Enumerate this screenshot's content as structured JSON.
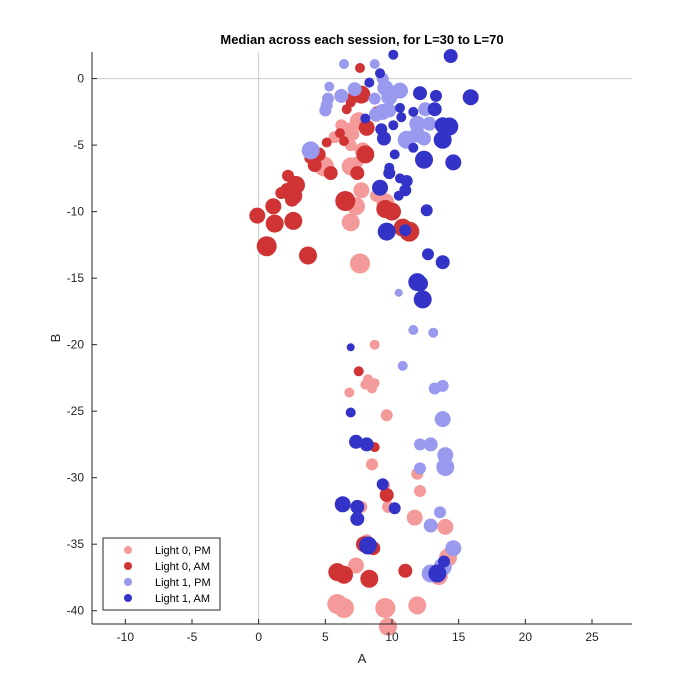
{
  "chart_data": {
    "type": "scatter",
    "title": "Median across each session, for L=30 to L=70",
    "xlabel": "A",
    "ylabel": "B",
    "xlim": [
      -12.5,
      28
    ],
    "ylim": [
      -41,
      2
    ],
    "xticks": [
      -10,
      -5,
      0,
      5,
      10,
      15,
      20,
      25
    ],
    "yticks": [
      0,
      -5,
      -10,
      -15,
      -20,
      -25,
      -30,
      -35,
      -40
    ],
    "reference_lines": {
      "x": 0,
      "y": 0
    },
    "grid": false,
    "legend_position": "bottom-left",
    "series": [
      {
        "name": "Light 0, PM",
        "color": "#F59A9A",
        "points": [
          [
            8.8,
            -2.8,
            6
          ],
          [
            7.5,
            -3.2,
            9
          ],
          [
            6.2,
            -3.5,
            6
          ],
          [
            6.6,
            -3.9,
            8
          ],
          [
            7.1,
            -4.2,
            6
          ],
          [
            5.7,
            -4.4,
            6
          ],
          [
            6.9,
            -5.0,
            6
          ],
          [
            7.8,
            -5.4,
            8
          ],
          [
            7.4,
            -6.3,
            6
          ],
          [
            6.9,
            -6.6,
            9
          ],
          [
            4.9,
            -6.6,
            10
          ],
          [
            7.7,
            -8.4,
            8
          ],
          [
            8.8,
            -8.8,
            6
          ],
          [
            9.5,
            -9.3,
            9
          ],
          [
            7.3,
            -9.6,
            9
          ],
          [
            6.9,
            -10.8,
            9
          ],
          [
            7.6,
            -13.9,
            10
          ],
          [
            8.7,
            -20.0,
            5
          ],
          [
            8.2,
            -22.6,
            5
          ],
          [
            8.7,
            -22.9,
            5
          ],
          [
            8.0,
            -23.0,
            5
          ],
          [
            6.8,
            -23.6,
            5
          ],
          [
            8.5,
            -23.3,
            5
          ],
          [
            9.6,
            -25.3,
            6
          ],
          [
            8.5,
            -29.0,
            6
          ],
          [
            11.9,
            -29.7,
            6
          ],
          [
            9.4,
            -30.6,
            6
          ],
          [
            12.1,
            -31.0,
            6
          ],
          [
            7.7,
            -32.2,
            6
          ],
          [
            9.7,
            -32.2,
            6
          ],
          [
            11.7,
            -33.0,
            8
          ],
          [
            14.0,
            -33.7,
            8
          ],
          [
            8.1,
            -34.7,
            6
          ],
          [
            14.2,
            -36.0,
            9
          ],
          [
            7.3,
            -36.6,
            8
          ],
          [
            13.5,
            -37.4,
            9
          ],
          [
            5.9,
            -39.5,
            10
          ],
          [
            6.4,
            -39.8,
            10
          ],
          [
            9.5,
            -39.8,
            10
          ],
          [
            11.9,
            -39.6,
            9
          ],
          [
            9.7,
            -41.2,
            9
          ]
        ]
      },
      {
        "name": "Light 0, AM",
        "color": "#D03333",
        "points": [
          [
            7.6,
            0.8,
            5
          ],
          [
            7.1,
            -1.4,
            6
          ],
          [
            6.9,
            -1.8,
            5
          ],
          [
            7.7,
            -1.2,
            9
          ],
          [
            6.6,
            -2.3,
            5
          ],
          [
            8.9,
            -2.6,
            7
          ],
          [
            8.1,
            -3.7,
            8
          ],
          [
            6.1,
            -4.1,
            5
          ],
          [
            6.4,
            -4.7,
            5
          ],
          [
            5.1,
            -4.8,
            5
          ],
          [
            4.5,
            -5.7,
            7
          ],
          [
            8.0,
            -5.7,
            9
          ],
          [
            4.2,
            -6.5,
            7
          ],
          [
            3.8,
            -6.0,
            5
          ],
          [
            7.4,
            -7.1,
            7
          ],
          [
            5.4,
            -7.1,
            7
          ],
          [
            2.2,
            -7.3,
            6
          ],
          [
            2.8,
            -8.0,
            9
          ],
          [
            2.1,
            -8.3,
            6
          ],
          [
            1.7,
            -8.6,
            6
          ],
          [
            2.6,
            -8.8,
            9
          ],
          [
            2.5,
            -9.1,
            7
          ],
          [
            1.1,
            -9.6,
            8
          ],
          [
            -0.1,
            -10.3,
            8
          ],
          [
            1.2,
            -10.9,
            9
          ],
          [
            2.6,
            -10.7,
            9
          ],
          [
            6.5,
            -9.2,
            10
          ],
          [
            9.5,
            -9.8,
            9
          ],
          [
            10.0,
            -10.0,
            9
          ],
          [
            10.8,
            -11.2,
            9
          ],
          [
            11.3,
            -11.5,
            10
          ],
          [
            0.6,
            -12.6,
            10
          ],
          [
            3.7,
            -13.3,
            9
          ],
          [
            7.5,
            -22.0,
            5
          ],
          [
            8.7,
            -27.7,
            5
          ],
          [
            9.6,
            -31.3,
            7
          ],
          [
            7.9,
            -35.0,
            8
          ],
          [
            8.6,
            -35.3,
            7
          ],
          [
            5.9,
            -37.1,
            9
          ],
          [
            6.4,
            -37.3,
            9
          ],
          [
            11.0,
            -37.0,
            7
          ],
          [
            8.3,
            -37.6,
            9
          ]
        ]
      },
      {
        "name": "Light 1, PM",
        "color": "#9999EE",
        "points": [
          [
            6.4,
            1.1,
            5
          ],
          [
            8.7,
            1.1,
            5
          ],
          [
            9.3,
            0.0,
            6
          ],
          [
            5.3,
            -0.6,
            5
          ],
          [
            7.2,
            -0.8,
            7
          ],
          [
            9.5,
            -0.7,
            8
          ],
          [
            10.6,
            -0.9,
            8
          ],
          [
            6.2,
            -1.3,
            7
          ],
          [
            9.8,
            -1.4,
            8
          ],
          [
            8.7,
            -1.5,
            6
          ],
          [
            5.2,
            -1.5,
            6
          ],
          [
            5.1,
            -2.0,
            6
          ],
          [
            5.0,
            -2.4,
            6
          ],
          [
            9.3,
            -2.5,
            8
          ],
          [
            9.8,
            -2.4,
            7
          ],
          [
            12.5,
            -2.3,
            7
          ],
          [
            8.8,
            -2.7,
            7
          ],
          [
            11.9,
            -3.4,
            8
          ],
          [
            12.8,
            -3.4,
            7
          ],
          [
            11.9,
            -4.2,
            8
          ],
          [
            11.1,
            -4.6,
            9
          ],
          [
            12.4,
            -4.5,
            7
          ],
          [
            3.9,
            -5.4,
            9
          ],
          [
            10.5,
            -16.1,
            4
          ],
          [
            11.6,
            -18.9,
            5
          ],
          [
            13.1,
            -19.1,
            5
          ],
          [
            10.8,
            -21.6,
            5
          ],
          [
            13.2,
            -23.3,
            6
          ],
          [
            13.8,
            -23.1,
            6
          ],
          [
            13.8,
            -25.6,
            8
          ],
          [
            12.1,
            -27.5,
            6
          ],
          [
            12.9,
            -27.5,
            7
          ],
          [
            14.0,
            -28.3,
            8
          ],
          [
            12.1,
            -29.3,
            6
          ],
          [
            14.0,
            -29.2,
            9
          ],
          [
            13.6,
            -32.6,
            6
          ],
          [
            12.9,
            -33.6,
            7
          ],
          [
            14.6,
            -35.3,
            8
          ],
          [
            13.8,
            -36.7,
            9
          ],
          [
            12.9,
            -37.2,
            9
          ]
        ]
      },
      {
        "name": "Light 1, AM",
        "color": "#3333C8",
        "points": [
          [
            14.4,
            1.7,
            7
          ],
          [
            10.1,
            1.8,
            5
          ],
          [
            9.1,
            0.4,
            5
          ],
          [
            8.3,
            -0.3,
            5
          ],
          [
            12.1,
            -1.1,
            7
          ],
          [
            13.3,
            -1.3,
            6
          ],
          [
            15.9,
            -1.4,
            8
          ],
          [
            10.6,
            -2.2,
            5
          ],
          [
            13.2,
            -2.3,
            7
          ],
          [
            11.6,
            -2.5,
            5
          ],
          [
            10.7,
            -2.9,
            5
          ],
          [
            8.0,
            -3.0,
            5
          ],
          [
            13.8,
            -3.5,
            8
          ],
          [
            14.3,
            -3.6,
            9
          ],
          [
            9.2,
            -3.8,
            6
          ],
          [
            10.1,
            -3.5,
            5
          ],
          [
            9.4,
            -4.5,
            7
          ],
          [
            13.8,
            -4.6,
            9
          ],
          [
            11.6,
            -5.2,
            5
          ],
          [
            10.2,
            -5.7,
            5
          ],
          [
            12.4,
            -6.1,
            9
          ],
          [
            14.6,
            -6.3,
            8
          ],
          [
            9.8,
            -6.7,
            5
          ],
          [
            9.8,
            -7.1,
            6
          ],
          [
            10.6,
            -7.5,
            5
          ],
          [
            11.1,
            -7.7,
            6
          ],
          [
            11.0,
            -8.4,
            6
          ],
          [
            9.1,
            -8.2,
            8
          ],
          [
            10.5,
            -8.8,
            5
          ],
          [
            12.6,
            -9.9,
            6
          ],
          [
            9.6,
            -11.5,
            9
          ],
          [
            11.0,
            -11.4,
            6
          ],
          [
            12.7,
            -13.2,
            6
          ],
          [
            13.8,
            -13.8,
            7
          ],
          [
            11.9,
            -15.3,
            9
          ],
          [
            12.1,
            -15.4,
            8
          ],
          [
            12.3,
            -16.6,
            9
          ],
          [
            6.9,
            -20.2,
            4
          ],
          [
            6.9,
            -25.1,
            5
          ],
          [
            7.3,
            -27.3,
            7
          ],
          [
            8.1,
            -27.5,
            7
          ],
          [
            9.3,
            -30.5,
            6
          ],
          [
            6.3,
            -32.0,
            8
          ],
          [
            7.4,
            -32.2,
            7
          ],
          [
            10.2,
            -32.3,
            6
          ],
          [
            7.4,
            -33.1,
            7
          ],
          [
            8.2,
            -35.1,
            9
          ],
          [
            13.9,
            -36.3,
            6
          ],
          [
            13.4,
            -37.2,
            9
          ]
        ]
      }
    ]
  }
}
